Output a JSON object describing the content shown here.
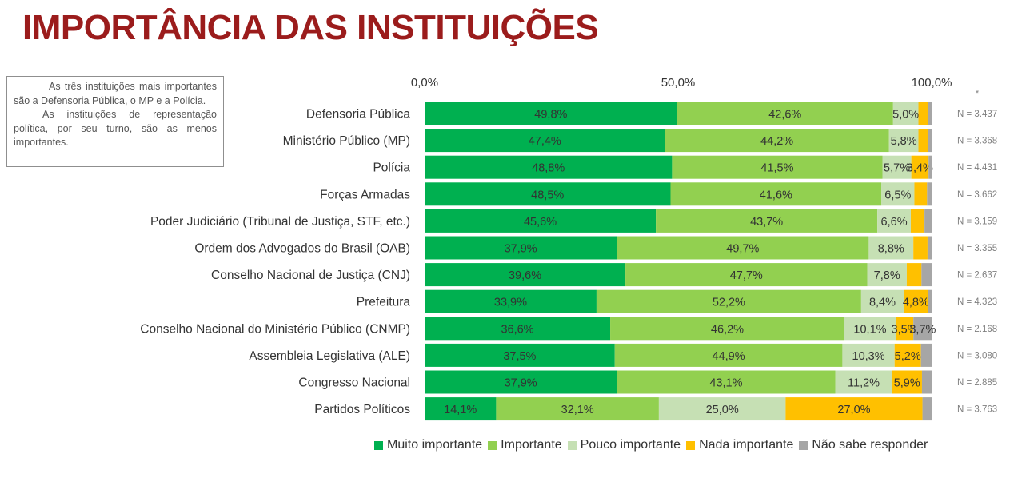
{
  "page": {
    "title": "IMPORTÂNCIA DAS INSTITUIÇÕES",
    "note": {
      "p1": "As três instituições mais importantes são a Defensoria Pública, o MP  e a Polícia.",
      "p2": "As instituições de representação política, por seu turno, são as menos importantes."
    },
    "asterisk": "*"
  },
  "chart_data": {
    "type": "bar",
    "orientation": "horizontal",
    "stacked": true,
    "percent_stacked": true,
    "xlim": [
      0,
      100
    ],
    "xticks": [
      {
        "value": 0,
        "label": "0,0%"
      },
      {
        "value": 50,
        "label": "50,0%"
      },
      {
        "value": 100,
        "label": "100,0%"
      }
    ],
    "xaxis_position": "top",
    "grid": false,
    "legend_position": "bottom",
    "categories": [
      "Defensoria Pública",
      "Ministério Público (MP)",
      "Polícia",
      "Forças Armadas",
      "Poder Judiciário (Tribunal de Justiça, STF, etc.)",
      "Ordem dos Advogados do Brasil (OAB)",
      "Conselho Nacional de Justiça (CNJ)",
      "Prefeitura",
      "Conselho Nacional do Ministério Público (CNMP)",
      "Assembleia Legislativa (ALE)",
      "Congresso Nacional",
      "Partidos Políticos"
    ],
    "n_labels": [
      "N = 3.437",
      "N = 3.368",
      "N = 4.431",
      "N = 3.662",
      "N = 3.159",
      "N = 3.355",
      "N = 2.637",
      "N = 4.323",
      "N = 2.168",
      "N = 3.080",
      "N = 2.885",
      "N = 3.763"
    ],
    "series": [
      {
        "name": "Muito importante",
        "color": "#00b050",
        "values": [
          49.8,
          47.4,
          48.8,
          48.5,
          45.6,
          37.9,
          39.6,
          33.9,
          36.6,
          37.5,
          37.9,
          14.1
        ],
        "labels": [
          "49,8%",
          "47,4%",
          "48,8%",
          "48,5%",
          "45,6%",
          "37,9%",
          "39,6%",
          "33,9%",
          "36,6%",
          "37,5%",
          "37,9%",
          "14,1%"
        ]
      },
      {
        "name": "Importante",
        "color": "#92d050",
        "values": [
          42.6,
          44.2,
          41.5,
          41.6,
          43.7,
          49.7,
          47.7,
          52.2,
          46.2,
          44.9,
          43.1,
          32.1
        ],
        "labels": [
          "42,6%",
          "44,2%",
          "41,5%",
          "41,6%",
          "43,7%",
          "49,7%",
          "47,7%",
          "52,2%",
          "46,2%",
          "44,9%",
          "43,1%",
          "32,1%"
        ]
      },
      {
        "name": "Pouco importante",
        "color": "#c6e0b4",
        "values": [
          5.0,
          5.8,
          5.7,
          6.5,
          6.6,
          8.8,
          7.8,
          8.4,
          10.1,
          10.3,
          11.2,
          25.0
        ],
        "labels": [
          "5,0%",
          "5,8%",
          "5,7%",
          "6,5%",
          "6,6%",
          "8,8%",
          "7,8%",
          "8,4%",
          "10,1%",
          "10,3%",
          "11,2%",
          "25,0%"
        ]
      },
      {
        "name": "Nada importante",
        "color": "#ffc000",
        "values": [
          1.9,
          1.9,
          3.4,
          2.5,
          2.7,
          2.8,
          2.9,
          4.8,
          3.5,
          5.2,
          5.9,
          27.0
        ],
        "labels": [
          "",
          "",
          "3,4%",
          "",
          "",
          "",
          "",
          "4,8%",
          "3,5%",
          "5,2%",
          "5,9%",
          "27,0%"
        ]
      },
      {
        "name": "Não sabe responder",
        "color": "#a6a6a6",
        "values": [
          0.7,
          0.7,
          0.6,
          0.9,
          1.4,
          0.8,
          2.0,
          0.7,
          3.7,
          2.1,
          1.9,
          1.8
        ],
        "labels": [
          "",
          "",
          "",
          "",
          "",
          "",
          "",
          "",
          "3,7%",
          "",
          "",
          ""
        ]
      }
    ]
  }
}
